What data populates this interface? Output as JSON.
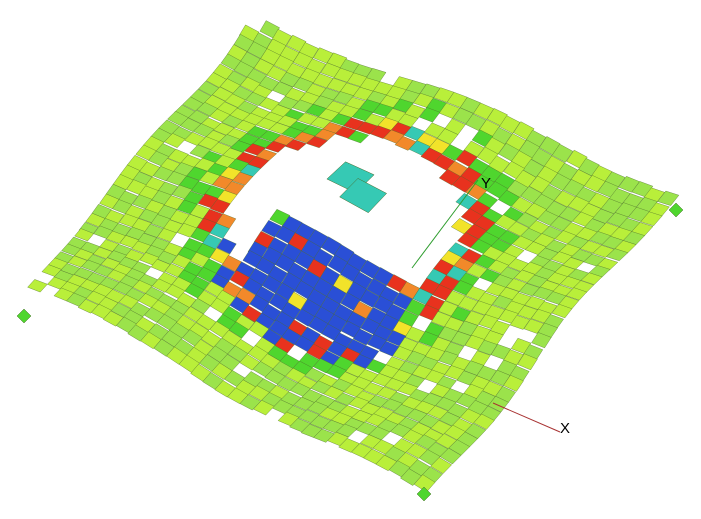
{
  "viewport": {
    "background": "#ffffff"
  },
  "axes": {
    "x_label": "X",
    "y_label": "Y",
    "x_color": "#a83232",
    "y_color": "#2e9d2e"
  },
  "palette": {
    "base_green": "#9be34b",
    "lime": "#b9ef3a",
    "bright_green": "#4fd62e",
    "yellow": "#f2e32a",
    "orange": "#f2892a",
    "red": "#e8321e",
    "blue": "#2a4fd6",
    "cyan": "#36c9b4",
    "edge": "#4a6a2a"
  }
}
